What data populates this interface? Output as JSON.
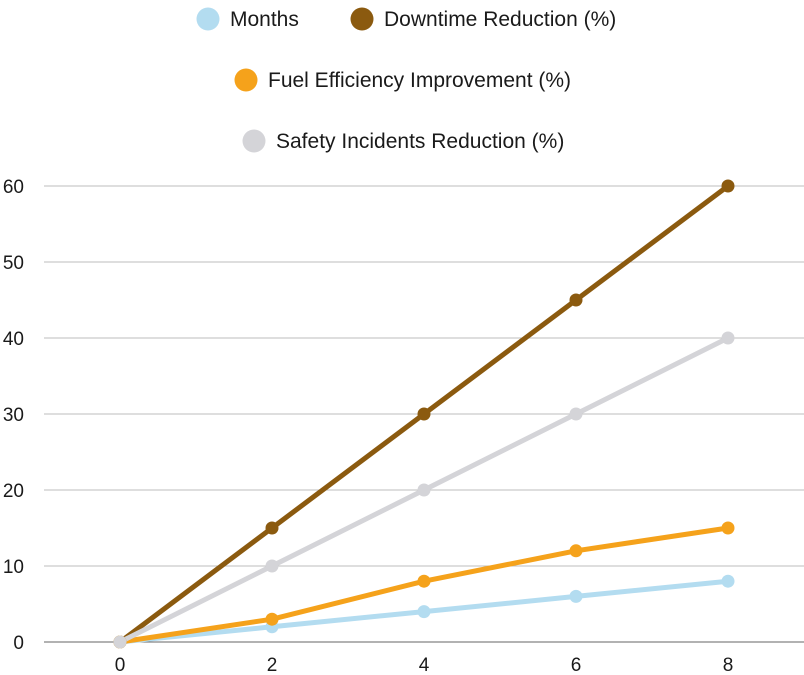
{
  "chart_data": {
    "type": "line",
    "title": "",
    "xlabel": "",
    "ylabel": "",
    "x": [
      0,
      2,
      4,
      6,
      8
    ],
    "xlim": [
      -1,
      9
    ],
    "ylim": [
      0,
      60
    ],
    "x_ticks": [
      0,
      2,
      4,
      6,
      8
    ],
    "y_ticks": [
      0,
      10,
      20,
      30,
      40,
      50,
      60
    ],
    "grid": "horizontal",
    "legend_position": "top",
    "series": [
      {
        "name": "Months",
        "color": "#b3dcf0",
        "values": [
          0,
          2,
          4,
          6,
          8
        ]
      },
      {
        "name": "Downtime Reduction (%)",
        "color": "#8b5a0f",
        "values": [
          0,
          15,
          30,
          45,
          60
        ]
      },
      {
        "name": "Fuel Efficiency Improvement (%)",
        "color": "#f5a21b",
        "values": [
          0,
          3,
          8,
          12,
          15
        ]
      },
      {
        "name": "Safety Incidents Reduction (%)",
        "color": "#d4d4d8",
        "values": [
          0,
          10,
          20,
          30,
          40
        ]
      }
    ]
  }
}
